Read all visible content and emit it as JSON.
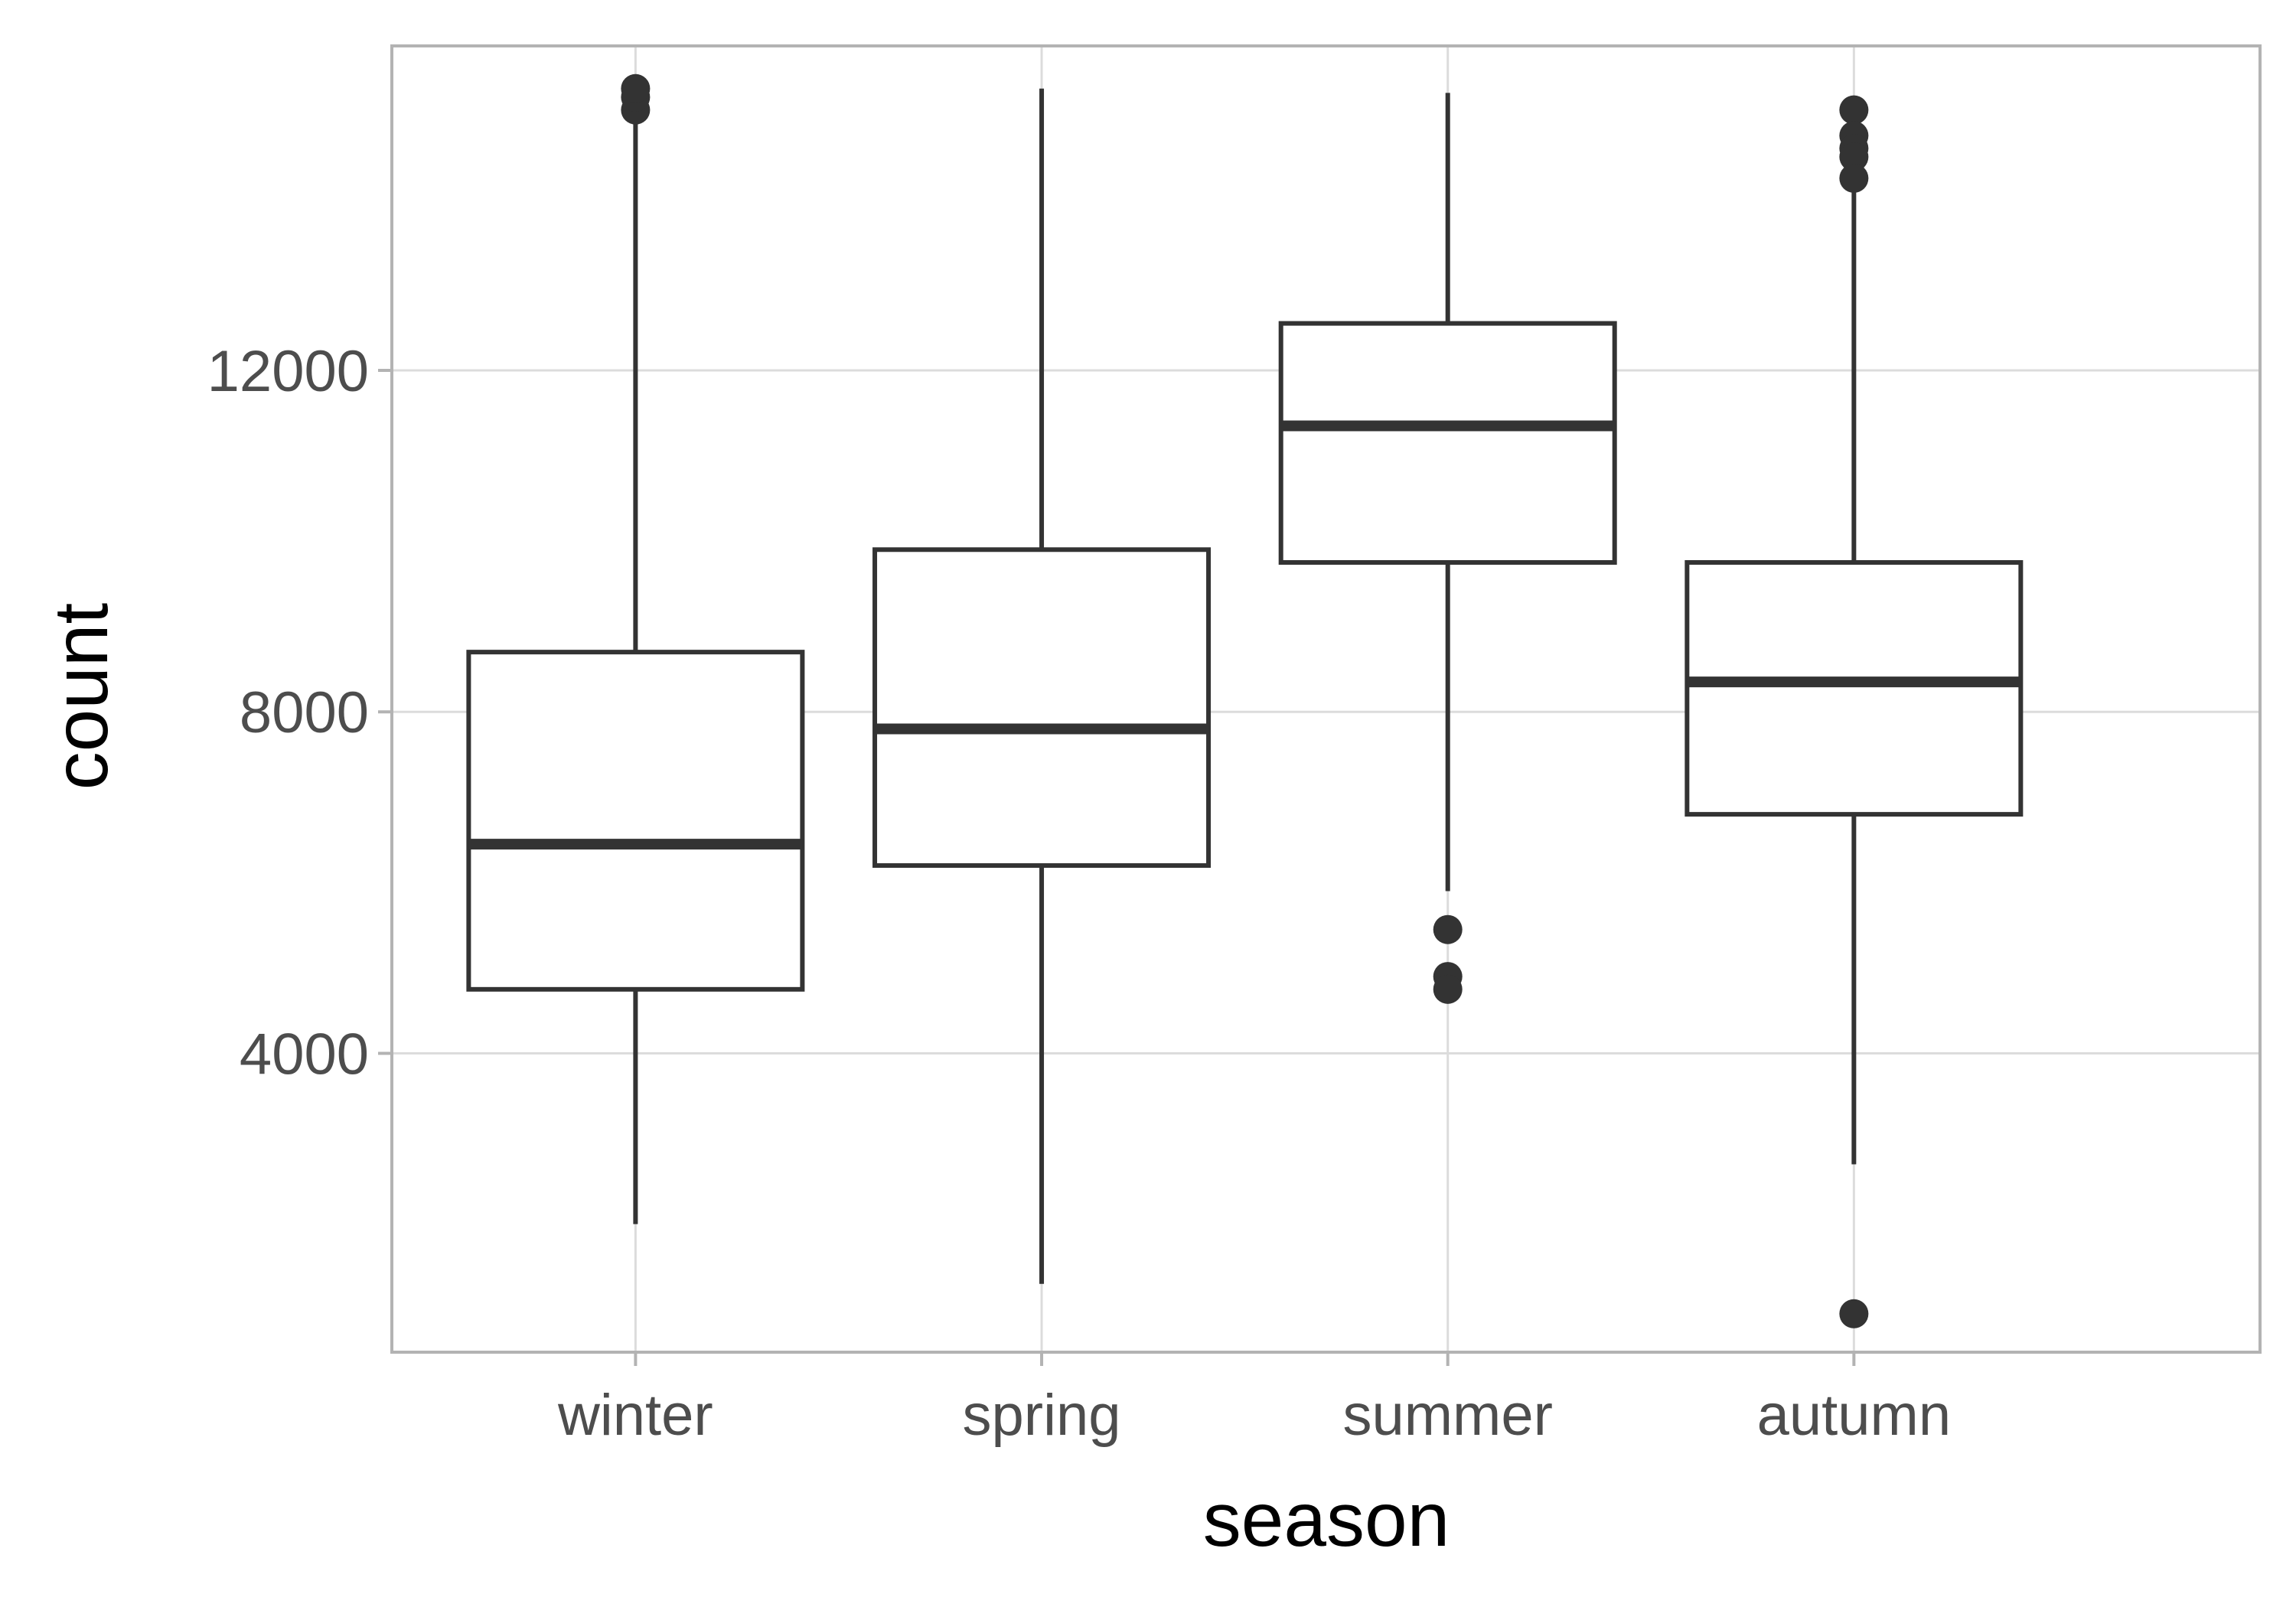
{
  "chart_data": {
    "type": "boxplot",
    "xlabel": "season",
    "ylabel": "count",
    "categories": [
      "winter",
      "spring",
      "summer",
      "autumn"
    ],
    "ylim": [
      500,
      15800
    ],
    "y_ticks": [
      4000,
      8000,
      12000
    ],
    "y_tick_labels": [
      "4000",
      "8000",
      "12000"
    ],
    "grid": true,
    "boxes": [
      {
        "category": "winter",
        "whisker_low": 2000,
        "q1": 4750,
        "median": 6450,
        "q3": 8700,
        "whisker_high": 15000,
        "outliers": [
          15050,
          15200,
          15300
        ]
      },
      {
        "category": "spring",
        "whisker_low": 1300,
        "q1": 6200,
        "median": 7800,
        "q3": 9900,
        "whisker_high": 15300,
        "outliers": []
      },
      {
        "category": "summer",
        "whisker_low": 5900,
        "q1": 9750,
        "median": 11350,
        "q3": 12550,
        "whisker_high": 15250,
        "outliers": [
          5450,
          4900,
          4750
        ]
      },
      {
        "category": "autumn",
        "whisker_low": 2700,
        "q1": 6800,
        "median": 8350,
        "q3": 9750,
        "whisker_high": 14250,
        "outliers": [
          15050,
          14750,
          14600,
          14500,
          14250,
          950
        ]
      }
    ],
    "colors": {
      "box_stroke": "#333333",
      "box_fill": "#ffffff",
      "grid": "#dcdcdc",
      "panel_border": "#b3b3b3",
      "tick_mark": "#b3b3b3",
      "tick_label": "#4d4d4d",
      "axis_title": "#000000"
    }
  }
}
